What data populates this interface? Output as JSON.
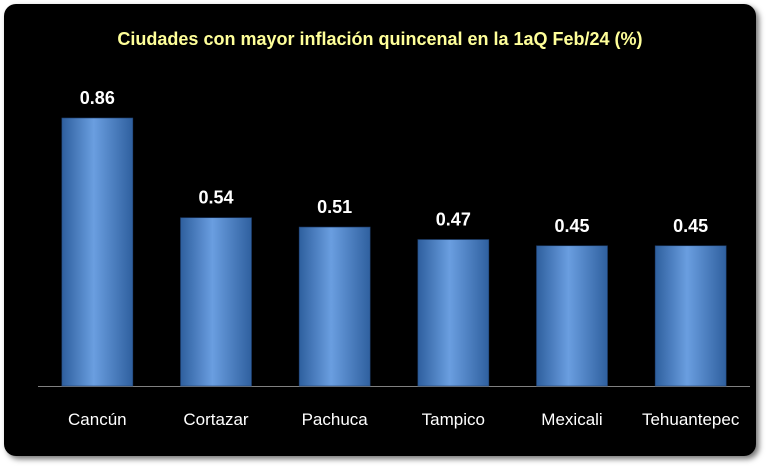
{
  "chart_data": {
    "type": "bar",
    "title": "Ciudades con mayor inflación quincenal en la 1aQ Feb/24 (%)",
    "categories": [
      "Cancún",
      "Cortazar",
      "Pachuca",
      "Tampico",
      "Mexicali",
      "Tehuantepec"
    ],
    "values": [
      0.86,
      0.54,
      0.51,
      0.47,
      0.45,
      0.45
    ],
    "data_labels": [
      "0.86",
      "0.54",
      "0.51",
      "0.47",
      "0.45",
      "0.45"
    ],
    "xlabel": "",
    "ylabel": "",
    "ylim": [
      0,
      0.86
    ],
    "grid": false,
    "legend": "none",
    "colors": {
      "background": "#000000",
      "bar": "#4f81bd",
      "bar_highlight": "#8db3e2",
      "title": "#ffff99",
      "labels": "#ffffff",
      "axis": "#808080"
    }
  }
}
